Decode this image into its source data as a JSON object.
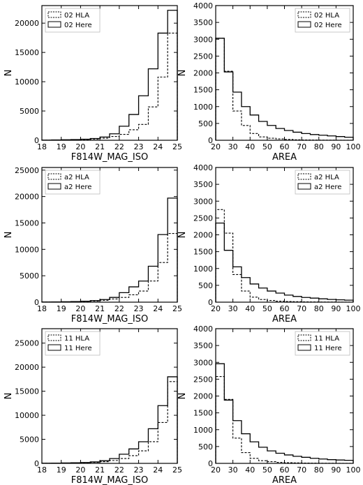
{
  "chart_data": [
    {
      "type": "histogram",
      "id": "p1",
      "xlabel": "F814W_MAG_ISO",
      "ylabel": "N",
      "xlim": [
        18,
        25
      ],
      "ylim": [
        0,
        23000
      ],
      "xticks": [
        18,
        19,
        20,
        21,
        22,
        23,
        24,
        25
      ],
      "yticks": [
        0,
        5000,
        10000,
        15000,
        20000
      ],
      "legend_position": "upper-left",
      "bin_edges": [
        18,
        18.5,
        19,
        19.5,
        20,
        20.5,
        21,
        21.5,
        22,
        22.5,
        23,
        23.5,
        24,
        24.5,
        25
      ],
      "series": [
        {
          "name": "02 HLA",
          "style": "dashed",
          "values": [
            20,
            40,
            60,
            90,
            130,
            200,
            350,
            650,
            1000,
            1800,
            2700,
            5700,
            10800,
            18300
          ]
        },
        {
          "name": "02 Here",
          "style": "solid",
          "values": [
            30,
            50,
            80,
            120,
            180,
            300,
            550,
            1100,
            2400,
            4400,
            7600,
            12200,
            18300,
            22200
          ]
        }
      ]
    },
    {
      "type": "histogram",
      "id": "p2",
      "xlabel": "AREA",
      "ylabel": "N",
      "xlim": [
        20,
        100
      ],
      "ylim": [
        0,
        4000
      ],
      "xticks": [
        20,
        30,
        40,
        50,
        60,
        70,
        80,
        90,
        100
      ],
      "yticks": [
        0,
        500,
        1000,
        1500,
        2000,
        2500,
        3000,
        3500,
        4000
      ],
      "legend_position": "upper-right",
      "bin_edges": [
        20,
        25,
        30,
        35,
        40,
        45,
        50,
        55,
        60,
        65,
        70,
        75,
        80,
        85,
        90,
        95,
        100
      ],
      "series": [
        {
          "name": "02 HLA",
          "style": "dashed",
          "values": [
            3030,
            2050,
            870,
            440,
            200,
            100,
            60,
            40,
            25,
            15,
            10,
            8,
            5,
            3,
            2,
            1
          ]
        },
        {
          "name": "02 Here",
          "style": "solid",
          "values": [
            3030,
            2030,
            1430,
            1000,
            750,
            560,
            440,
            350,
            290,
            240,
            200,
            170,
            150,
            130,
            110,
            90
          ]
        }
      ]
    },
    {
      "type": "histogram",
      "id": "p3",
      "xlabel": "F814W_MAG_ISO",
      "ylabel": "N",
      "xlim": [
        18,
        25
      ],
      "ylim": [
        0,
        25500
      ],
      "xticks": [
        18,
        19,
        20,
        21,
        22,
        23,
        24,
        25
      ],
      "yticks": [
        0,
        5000,
        10000,
        15000,
        20000,
        25000
      ],
      "legend_position": "upper-left",
      "bin_edges": [
        18,
        18.5,
        19,
        19.5,
        20,
        20.5,
        21,
        21.5,
        22,
        22.5,
        23,
        23.5,
        24,
        24.5,
        25
      ],
      "series": [
        {
          "name": "a2 HLA",
          "style": "dashed",
          "values": [
            20,
            40,
            60,
            90,
            130,
            200,
            350,
            600,
            900,
            1400,
            2100,
            4000,
            7500,
            13000
          ]
        },
        {
          "name": "a2 Here",
          "style": "solid",
          "values": [
            30,
            50,
            80,
            120,
            180,
            300,
            500,
            900,
            1800,
            2900,
            4000,
            6800,
            12800,
            19700
          ]
        }
      ]
    },
    {
      "type": "histogram",
      "id": "p4",
      "xlabel": "AREA",
      "ylabel": "N",
      "xlim": [
        20,
        100
      ],
      "ylim": [
        0,
        4000
      ],
      "xticks": [
        20,
        30,
        40,
        50,
        60,
        70,
        80,
        90,
        100
      ],
      "yticks": [
        0,
        500,
        1000,
        1500,
        2000,
        2500,
        3000,
        3500,
        4000
      ],
      "legend_position": "upper-right",
      "bin_edges": [
        20,
        25,
        30,
        35,
        40,
        45,
        50,
        55,
        60,
        65,
        70,
        75,
        80,
        85,
        90,
        95,
        100
      ],
      "series": [
        {
          "name": "a2 HLA",
          "style": "dashed",
          "values": [
            2750,
            2050,
            820,
            330,
            150,
            80,
            50,
            30,
            20,
            15,
            10,
            7,
            5,
            3,
            2,
            1
          ]
        },
        {
          "name": "a2 Here",
          "style": "solid",
          "values": [
            2350,
            1540,
            1050,
            730,
            540,
            420,
            330,
            270,
            210,
            170,
            140,
            120,
            100,
            80,
            70,
            60
          ]
        }
      ]
    },
    {
      "type": "histogram",
      "id": "p5",
      "xlabel": "F814W_MAG_ISO",
      "ylabel": "N",
      "xlim": [
        18,
        25
      ],
      "ylim": [
        0,
        28000
      ],
      "xticks": [
        18,
        19,
        20,
        21,
        22,
        23,
        24,
        25
      ],
      "yticks": [
        0,
        5000,
        10000,
        15000,
        20000,
        25000
      ],
      "legend_position": "upper-left",
      "bin_edges": [
        18,
        18.5,
        19,
        19.5,
        20,
        20.5,
        21,
        21.5,
        22,
        22.5,
        23,
        23.5,
        24,
        24.5,
        25
      ],
      "series": [
        {
          "name": "11 HLA",
          "style": "dashed",
          "values": [
            20,
            40,
            60,
            90,
            130,
            200,
            350,
            600,
            1000,
            1600,
            2600,
            4500,
            8500,
            17000
          ]
        },
        {
          "name": "11 Here",
          "style": "solid",
          "values": [
            30,
            50,
            80,
            120,
            180,
            300,
            550,
            1000,
            1900,
            3000,
            4500,
            7200,
            12000,
            18000
          ]
        }
      ]
    },
    {
      "type": "histogram",
      "id": "p6",
      "xlabel": "AREA",
      "ylabel": "N",
      "xlim": [
        20,
        100
      ],
      "ylim": [
        0,
        4000
      ],
      "xticks": [
        20,
        30,
        40,
        50,
        60,
        70,
        80,
        90,
        100
      ],
      "yticks": [
        0,
        500,
        1000,
        1500,
        2000,
        2500,
        3000,
        3500,
        4000
      ],
      "legend_position": "upper-right",
      "bin_edges": [
        20,
        25,
        30,
        35,
        40,
        45,
        50,
        55,
        60,
        65,
        70,
        75,
        80,
        85,
        90,
        95,
        100
      ],
      "series": [
        {
          "name": "11 HLA",
          "style": "dashed",
          "values": [
            2580,
            1900,
            750,
            320,
            150,
            80,
            50,
            30,
            20,
            15,
            10,
            7,
            5,
            3,
            2,
            1
          ]
        },
        {
          "name": "11 Here",
          "style": "solid",
          "values": [
            2960,
            1880,
            1270,
            880,
            640,
            480,
            370,
            300,
            250,
            210,
            180,
            150,
            130,
            110,
            100,
            90
          ]
        }
      ]
    }
  ]
}
